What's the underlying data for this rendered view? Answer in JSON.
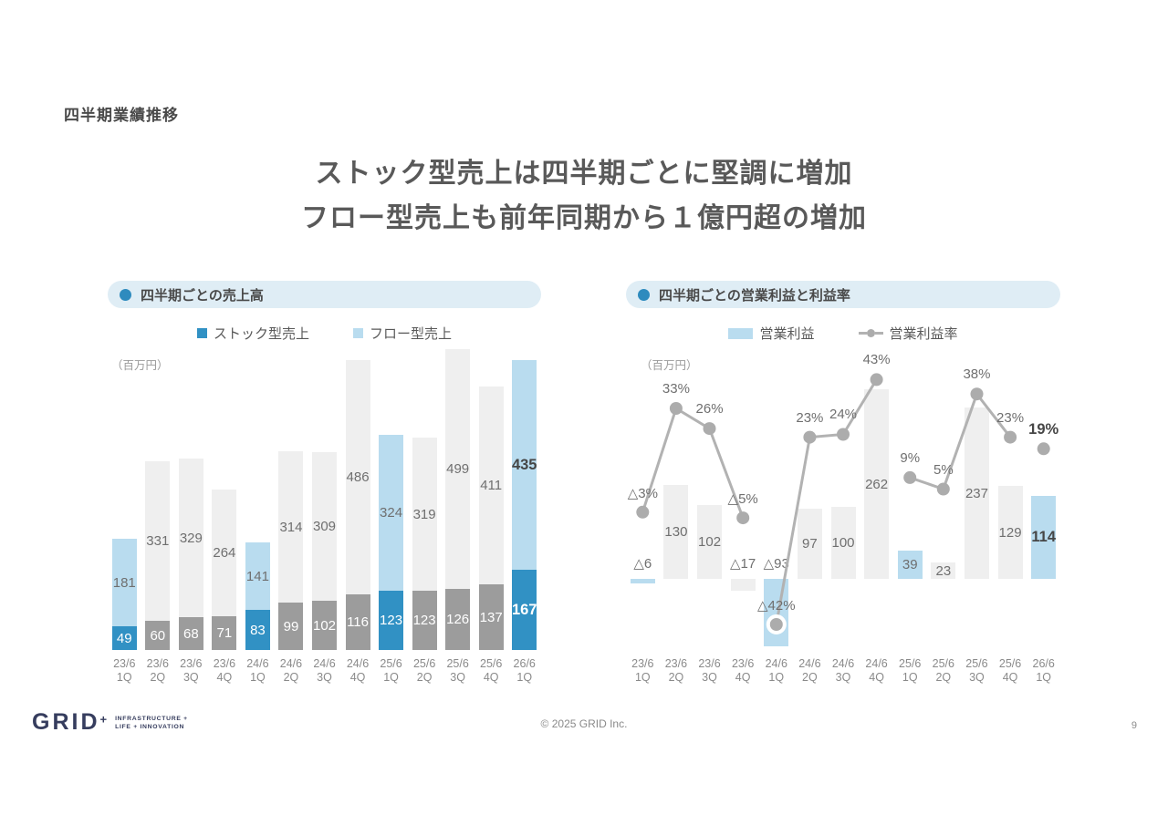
{
  "page": {
    "title": "四半期業績推移",
    "headline": {
      "line1": "ストック型売上は四半期ごとに堅調に増加",
      "line2": "フロー型売上も前年同期から１億円超の増加"
    }
  },
  "footer": {
    "copyright": "© 2025 GRID Inc.",
    "page_number": "9",
    "logo": {
      "text": "GRID",
      "plus": "+",
      "tagline1": "INFRASTRUCTURE +",
      "tagline2": "LIFE + INNOVATION"
    }
  },
  "colors": {
    "accent_blue": "#3191C4",
    "light_blue": "#B9DCEF",
    "bar_gray": "#9C9C9C",
    "bar_light_gray": "#EFEFEF",
    "line_gray": "#B2B2B2",
    "dot_gray": "#ACACAC",
    "pill_bg": "#DFEDF5",
    "bullet_blue": "#2E8BBE",
    "text_dark": "#464646",
    "text_gray": "#6F6F6F",
    "label_white": "#FFFFFF",
    "axis_gray": "#8A8A8A",
    "logo_navy": "#363D5E"
  },
  "chart_data": [
    {
      "id": "quarterly-sales",
      "type": "bar",
      "stacked": true,
      "title": "四半期ごとの売上高",
      "unit": "（百万円）",
      "ylabel": "百万円",
      "ylim": [
        0,
        625
      ],
      "grid": false,
      "legend_position": "top",
      "legend": [
        {
          "label": "ストック型売上",
          "swatch": "square",
          "color_key": "accent_blue"
        },
        {
          "label": "フロー型売上",
          "swatch": "square",
          "color_key": "light_blue"
        }
      ],
      "categories": [
        "23/6 1Q",
        "23/6 2Q",
        "23/6 3Q",
        "23/6 4Q",
        "24/6 1Q",
        "24/6 2Q",
        "24/6 3Q",
        "24/6 4Q",
        "25/6 1Q",
        "25/6 2Q",
        "25/6 3Q",
        "25/6 4Q",
        "26/6 1Q"
      ],
      "series": [
        {
          "name": "ストック型売上",
          "values": [
            49,
            60,
            68,
            71,
            83,
            99,
            102,
            116,
            123,
            123,
            126,
            137,
            167
          ]
        },
        {
          "name": "フロー型売上",
          "values": [
            181,
            331,
            329,
            264,
            141,
            314,
            309,
            486,
            324,
            319,
            499,
            411,
            435
          ]
        }
      ],
      "highlight_indices": [
        0,
        4,
        8,
        12
      ],
      "bold_index": 12
    },
    {
      "id": "quarterly-operating-profit",
      "type": "bar+line",
      "title": "四半期ごとの営業利益と利益率",
      "unit": "（百万円）",
      "ylabel": "百万円",
      "grid": false,
      "legend_position": "top",
      "legend": [
        {
          "label": "営業利益",
          "swatch": "bar",
          "color_key": "light_blue"
        },
        {
          "label": "営業利益率",
          "swatch": "line-dot",
          "color_key": "line_gray"
        }
      ],
      "categories": [
        "23/6 1Q",
        "23/6 2Q",
        "23/6 3Q",
        "23/6 4Q",
        "24/6 1Q",
        "24/6 2Q",
        "24/6 3Q",
        "24/6 4Q",
        "25/6 1Q",
        "25/6 2Q",
        "25/6 3Q",
        "25/6 4Q",
        "26/6 1Q"
      ],
      "bar_series": {
        "name": "営業利益",
        "values": [
          -6,
          130,
          102,
          -17,
          -93,
          97,
          100,
          262,
          39,
          23,
          237,
          129,
          114
        ],
        "labels": [
          "△6",
          "130",
          "102",
          "△17",
          "△93",
          "97",
          "100",
          "262",
          "39",
          "23",
          "237",
          "129",
          "114"
        ]
      },
      "line_series": {
        "name": "営業利益率",
        "values_percent": [
          -3,
          33,
          26,
          -5,
          -42,
          23,
          24,
          43,
          9,
          5,
          38,
          23,
          19
        ],
        "labels": [
          "△3%",
          "33%",
          "26%",
          "△5%",
          "△42%",
          "23%",
          "24%",
          "43%",
          "9%",
          "5%",
          "38%",
          "23%",
          "19%"
        ],
        "segments": [
          [
            0,
            1,
            2,
            3
          ],
          [
            4,
            5,
            6,
            7
          ],
          [
            8,
            9,
            10,
            11
          ],
          [
            12
          ]
        ],
        "ringed_index": 4
      },
      "highlight_indices": [
        0,
        4,
        8,
        12
      ],
      "bold_index": 12
    }
  ]
}
